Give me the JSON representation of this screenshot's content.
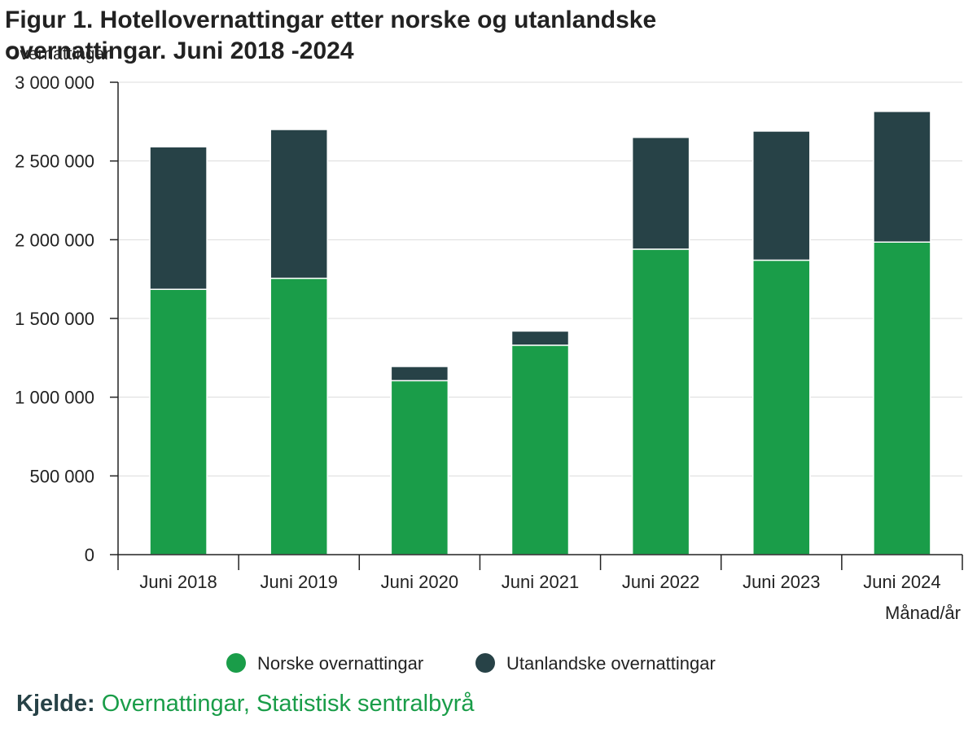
{
  "page": {
    "title": "Figur 1. Hotellovernattingar etter norske og utanlandske overnattingar. Juni 2018 -2024"
  },
  "chart_data": {
    "type": "bar",
    "stacked": true,
    "title": "Figur 1. Hotellovernattingar etter norske og utanlandske overnattingar. Juni 2018 -2024",
    "ylabel": "Overnattingar",
    "xlabel": "Månad/år",
    "categories": [
      "Juni 2018",
      "Juni 2019",
      "Juni 2020",
      "Juni 2021",
      "Juni 2022",
      "Juni 2023",
      "Juni 2024"
    ],
    "series": [
      {
        "name": "Norske overnattingar",
        "color": "#1a9d49",
        "values": [
          1685000,
          1755000,
          1105000,
          1330000,
          1940000,
          1870000,
          1985000
        ]
      },
      {
        "name": "Utanlandske overnattingar",
        "color": "#274247",
        "values": [
          905000,
          945000,
          90000,
          90000,
          710000,
          820000,
          830000
        ]
      }
    ],
    "ylim": [
      0,
      3000000
    ],
    "yticks": [
      0,
      500000,
      1000000,
      1500000,
      2000000,
      2500000,
      3000000
    ],
    "ytick_labels": [
      "0",
      "500 000",
      "1 000 000",
      "1 500 000",
      "2 000 000",
      "2 500 000",
      "3 000 000"
    ],
    "grid": true,
    "legend": "bottom"
  },
  "source": {
    "label": "Kjelde:",
    "text": "Overnattingar, Statistisk sentralbyrå"
  }
}
